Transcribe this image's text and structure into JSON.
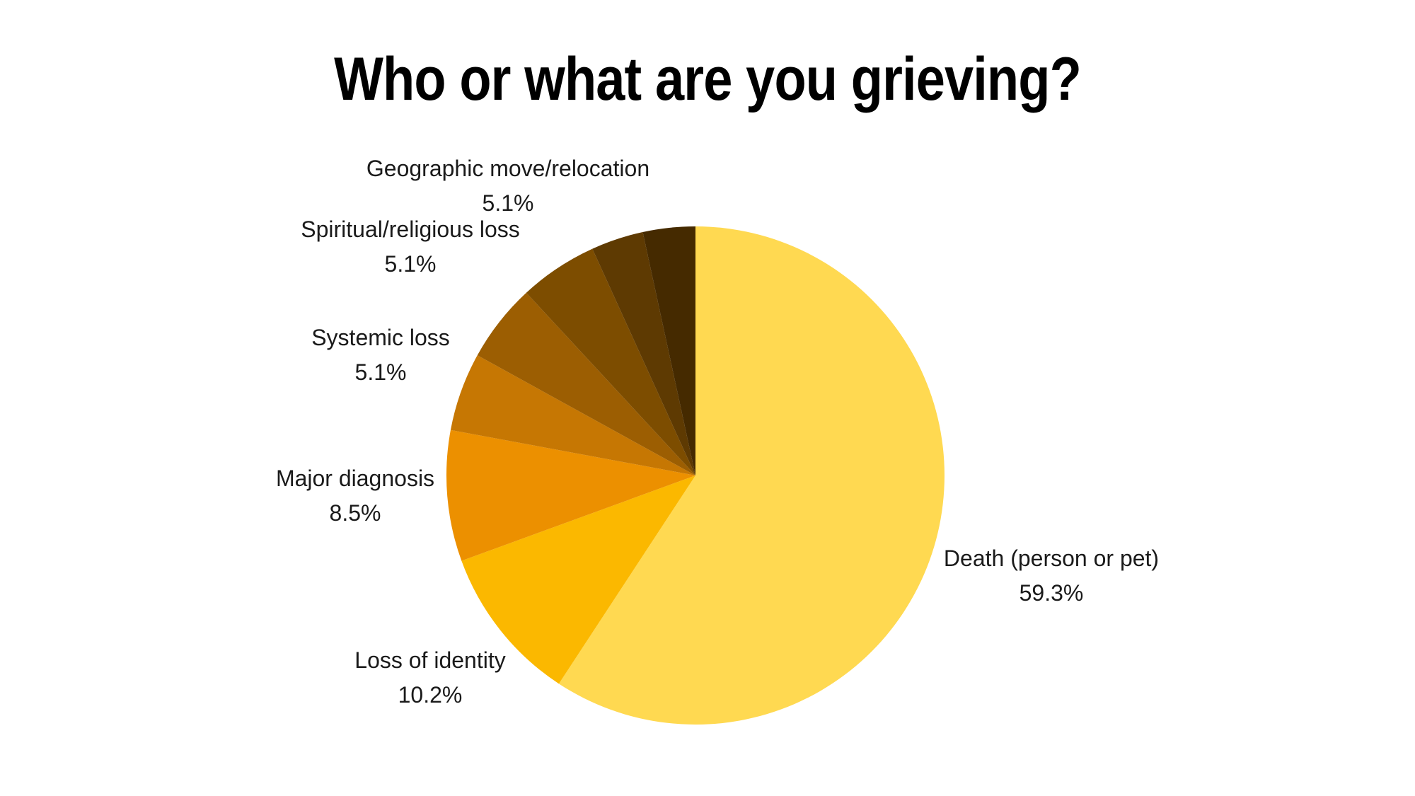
{
  "chart_data": {
    "type": "pie",
    "title": "Who or what are you grieving?",
    "labels": [
      "Death (person or pet)",
      "Loss of identity",
      "Major diagnosis",
      "Systemic loss",
      "Spiritual/religious loss",
      "Geographic move/relocation",
      "",
      ""
    ],
    "values": [
      59.3,
      10.2,
      8.5,
      5.1,
      5.1,
      5.1,
      3.4,
      3.4
    ],
    "value_labels": [
      "59.3%",
      "10.2%",
      "8.5%",
      "5.1%",
      "5.1%",
      "5.1%",
      "",
      ""
    ],
    "colors": [
      "#FFD951",
      "#FBB800",
      "#EC9000",
      "#C67703",
      "#9C5E02",
      "#7D4D00",
      "#5E3A02",
      "#452A00"
    ],
    "start_angle": "12 o'clock",
    "direction": "clockwise",
    "legend": "none"
  }
}
